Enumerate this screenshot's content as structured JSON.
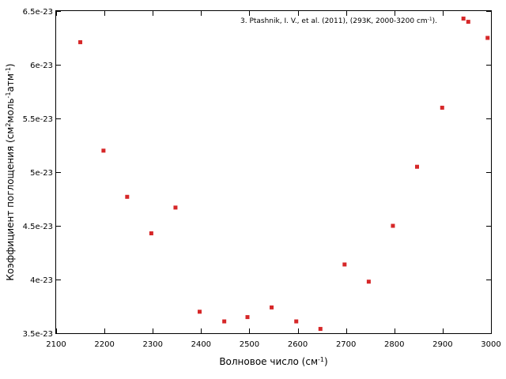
{
  "chart_data": {
    "type": "scatter",
    "xlabel": "Волновое число (см",
    "xlabel_sup": "-1",
    "xlabel_end": ")",
    "ylabel": "Коэффициент поглощения (см",
    "ylabel_sup1": "2",
    "ylabel_mid": "моль",
    "ylabel_sup2": "-1",
    "ylabel_mid2": "атм",
    "ylabel_sup3": "-1",
    "ylabel_end": ")",
    "xlim": [
      2100,
      3000
    ],
    "ylim": [
      3.5e-23,
      6.5e-23
    ],
    "x_ticks": [
      2100,
      2200,
      2300,
      2400,
      2500,
      2600,
      2700,
      2800,
      2900,
      3000
    ],
    "x_tick_labels": [
      "2100",
      "2200",
      "2300",
      "2400",
      "2500",
      "2600",
      "2700",
      "2800",
      "2900",
      "3000"
    ],
    "y_ticks": [
      3.5e-23,
      4e-23,
      4.5e-23,
      5e-23,
      5.5e-23,
      6e-23,
      6.5e-23
    ],
    "y_tick_labels": [
      "3.5e-23",
      "4e-23",
      "4.5e-23",
      "5e-23",
      "5.5e-23",
      "6e-23",
      "6.5e-23"
    ],
    "legend": "top-right",
    "grid": false,
    "series": [
      {
        "name": "3.  Ptashnik, I. V., et al.  (2011), (293K, 2000-3200 cm",
        "name_sup": "-1",
        "name_end": ").",
        "color": "#d62728",
        "x": [
          2150,
          2198,
          2247,
          2297,
          2347,
          2397,
          2448,
          2496,
          2546,
          2597,
          2647,
          2697,
          2747,
          2797,
          2847,
          2899,
          2943,
          2953,
          2993
        ],
        "y": [
          6.21e-23,
          5.2e-23,
          4.77e-23,
          4.43e-23,
          4.67e-23,
          3.7e-23,
          3.61e-23,
          3.65e-23,
          3.74e-23,
          3.61e-23,
          3.54e-23,
          4.14e-23,
          3.98e-23,
          4.5e-23,
          5.05e-23,
          5.6e-23,
          6.43e-23,
          6.4e-23,
          6.25e-23
        ]
      }
    ]
  }
}
